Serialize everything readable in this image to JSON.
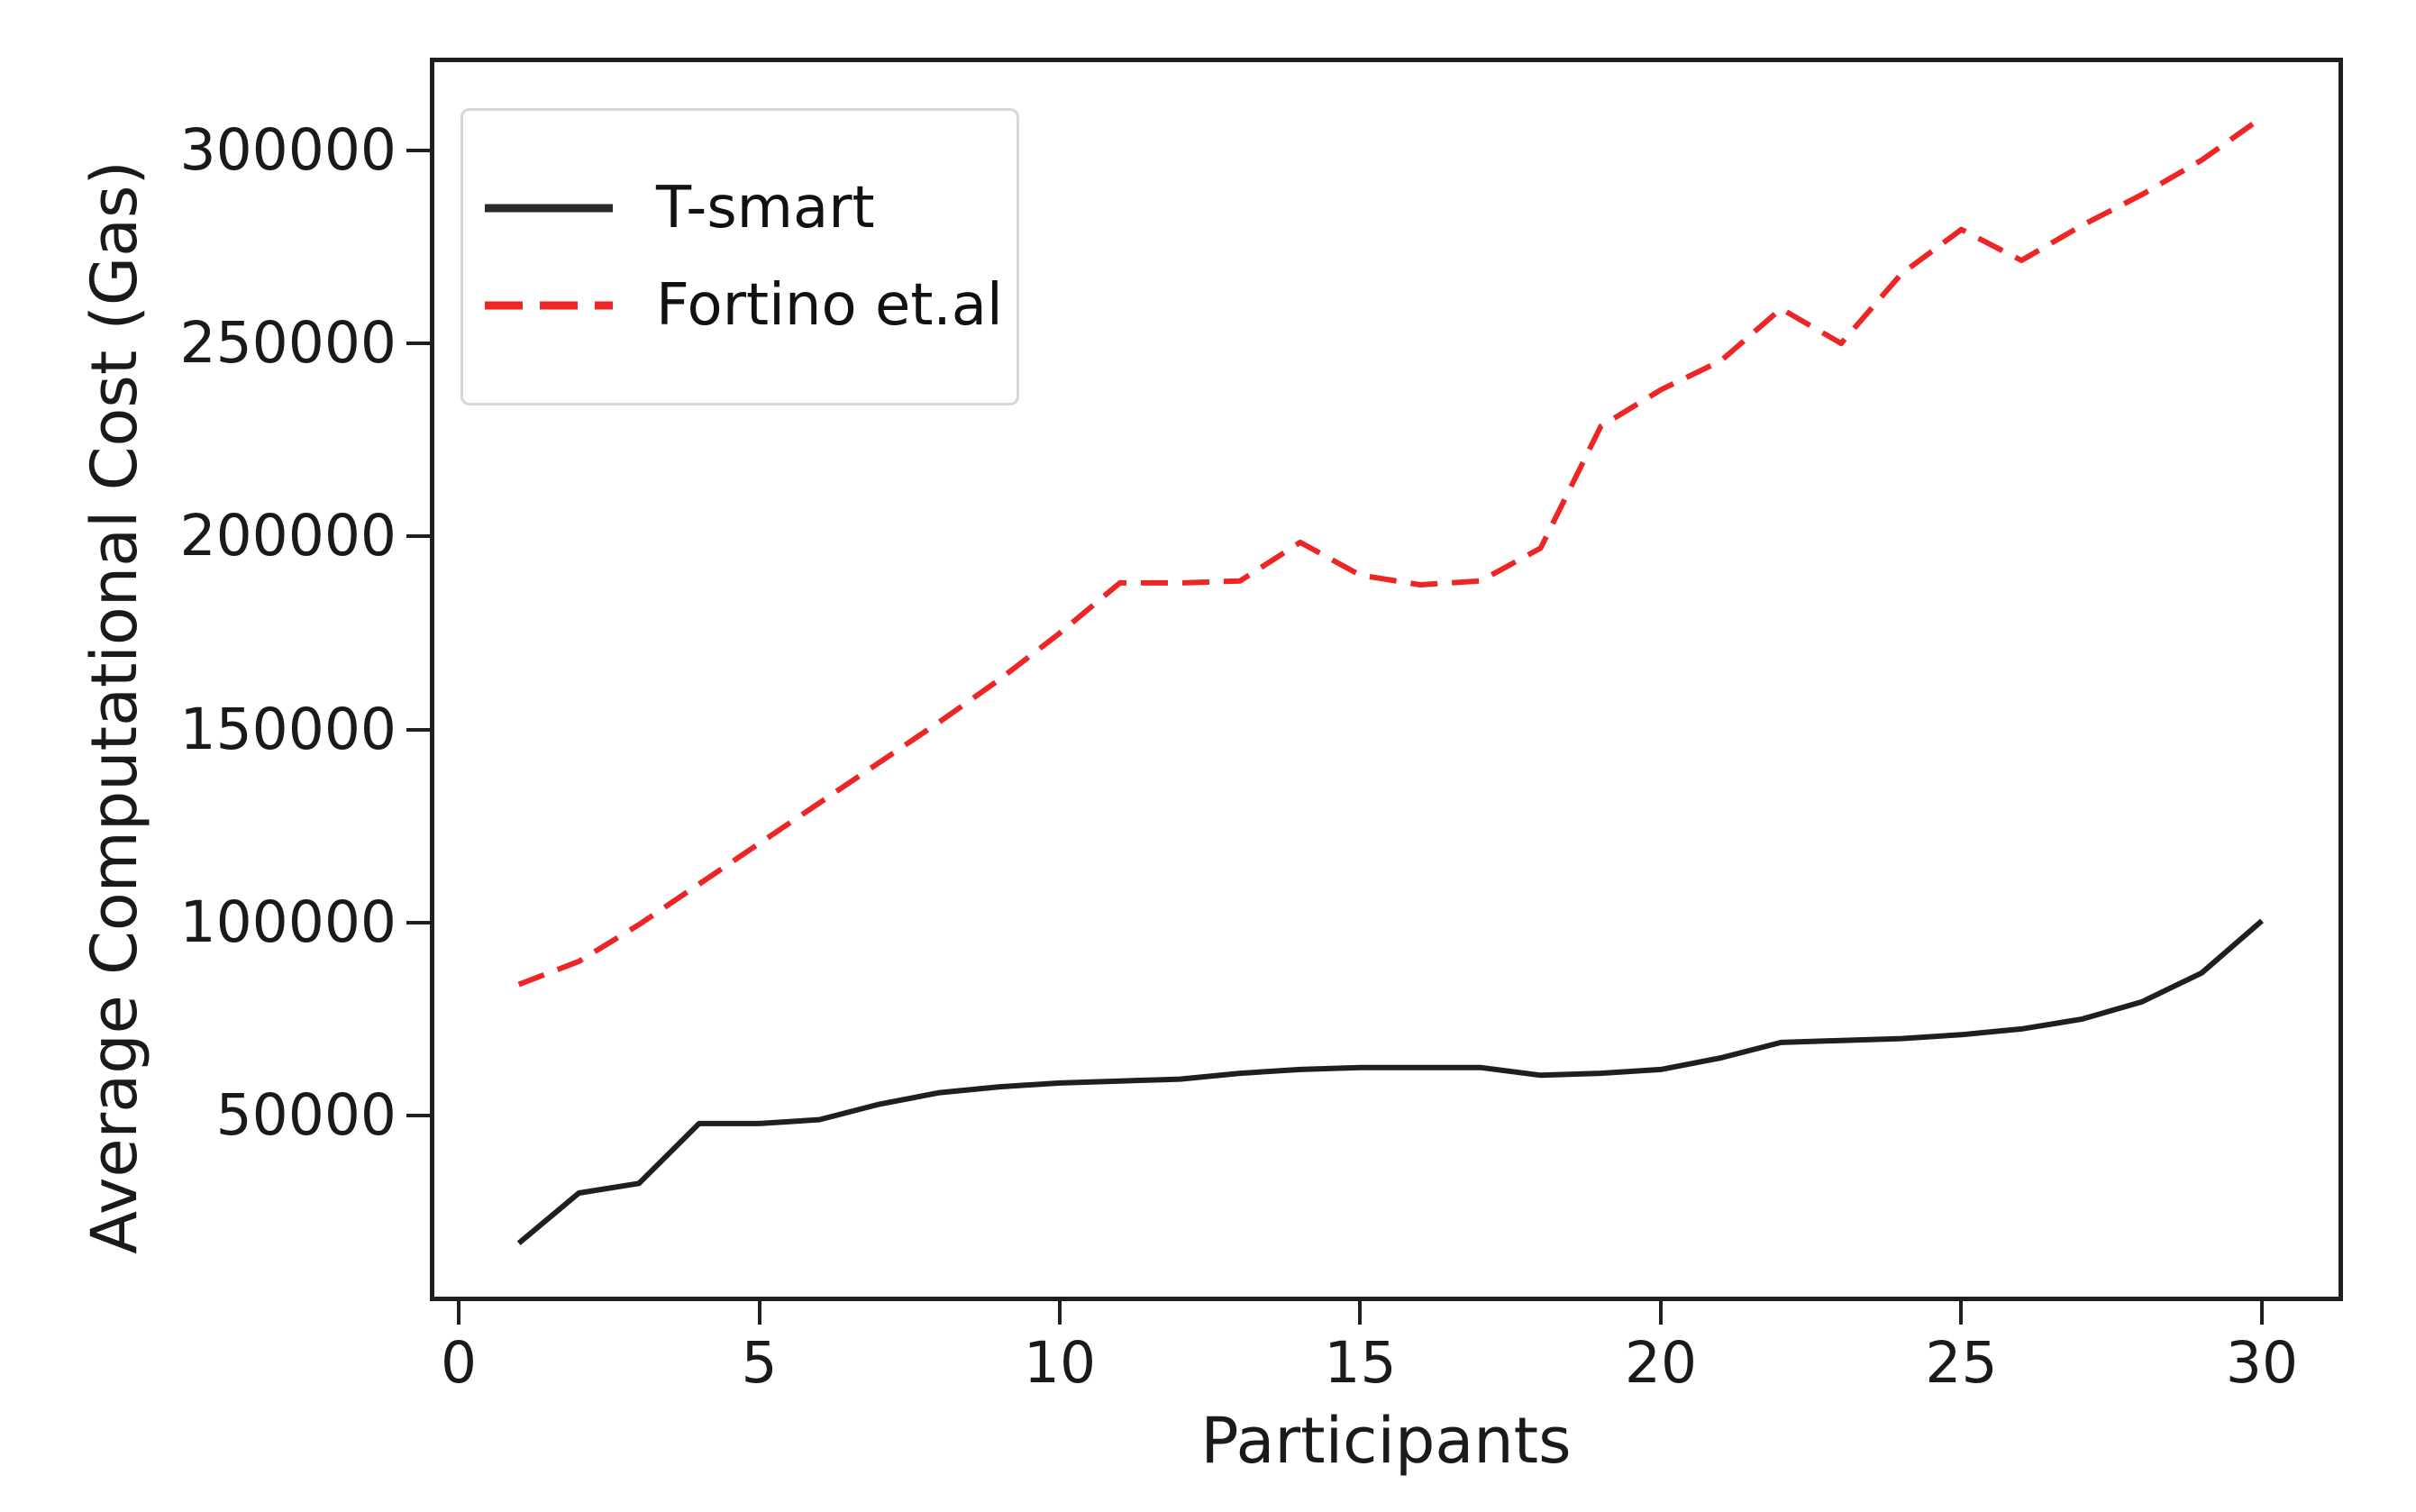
{
  "chart_data": {
    "type": "line",
    "title": "",
    "xlabel": "Participants",
    "ylabel": "Average Computational Cost (Gas)",
    "xlim": [
      -0.48,
      31.35
    ],
    "ylim": [
      2000,
      324000
    ],
    "x_ticks": [
      0,
      5,
      10,
      15,
      20,
      25,
      30
    ],
    "y_ticks": [
      50000,
      100000,
      150000,
      200000,
      250000,
      300000
    ],
    "grid": false,
    "legend_position": "upper-left",
    "frame_color": "#1f1f1f",
    "x": [
      1,
      2,
      3,
      4,
      5,
      6,
      7,
      8,
      9,
      10,
      11,
      12,
      13,
      14,
      15,
      16,
      17,
      18,
      19,
      20,
      21,
      22,
      23,
      24,
      25,
      26,
      27,
      28,
      29,
      30
    ],
    "series": [
      {
        "name": "T-smart",
        "color": "#1f1f1f",
        "style": "solid",
        "values": [
          17000,
          30000,
          32500,
          48000,
          48000,
          49000,
          53000,
          56000,
          57500,
          58500,
          59000,
          59500,
          61000,
          62000,
          62500,
          62500,
          62500,
          60500,
          61000,
          62000,
          65000,
          69000,
          69500,
          70000,
          71000,
          72500,
          75000,
          79500,
          87000,
          100500
        ]
      },
      {
        "name": "Fortino et.al",
        "color": "#ee2525",
        "style": "dashed",
        "values": [
          84000,
          90000,
          99500,
          110000,
          120500,
          131000,
          141500,
          152000,
          163000,
          175000,
          188000,
          188000,
          188500,
          198500,
          190000,
          187500,
          188500,
          197000,
          228500,
          238000,
          245500,
          259000,
          250000,
          268000,
          279500,
          271500,
          280500,
          288500,
          297500,
          308500
        ]
      }
    ]
  }
}
